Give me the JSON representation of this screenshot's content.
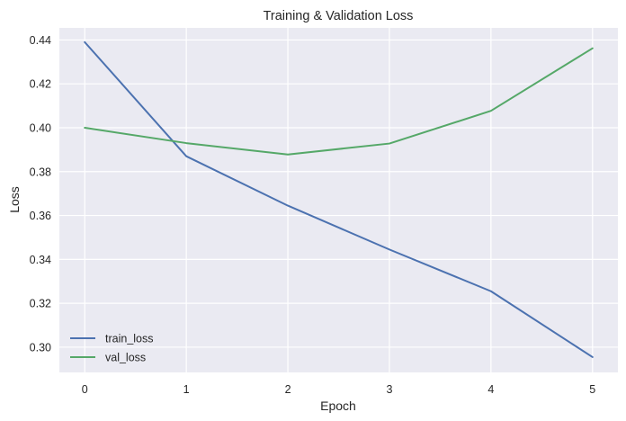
{
  "chart_data": {
    "type": "line",
    "title": "Training & Validation Loss",
    "xlabel": "Epoch",
    "ylabel": "Loss",
    "x": [
      0,
      1,
      2,
      3,
      4,
      5
    ],
    "xlim": [
      -0.25,
      5.25
    ],
    "ylim": [
      0.2885,
      0.4455
    ],
    "xticks": [
      "0",
      "1",
      "2",
      "3",
      "4",
      "5"
    ],
    "yticks": [
      "0.30",
      "0.32",
      "0.34",
      "0.36",
      "0.38",
      "0.40",
      "0.42",
      "0.44"
    ],
    "grid": true,
    "legend_position": "lower-left",
    "series": [
      {
        "name": "train_loss",
        "color": "#4c72b0",
        "values": [
          0.439,
          0.387,
          0.3645,
          0.3445,
          0.3255,
          0.2955
        ]
      },
      {
        "name": "val_loss",
        "color": "#55a868",
        "values": [
          0.4,
          0.393,
          0.3878,
          0.3928,
          0.4077,
          0.4362
        ]
      }
    ]
  }
}
